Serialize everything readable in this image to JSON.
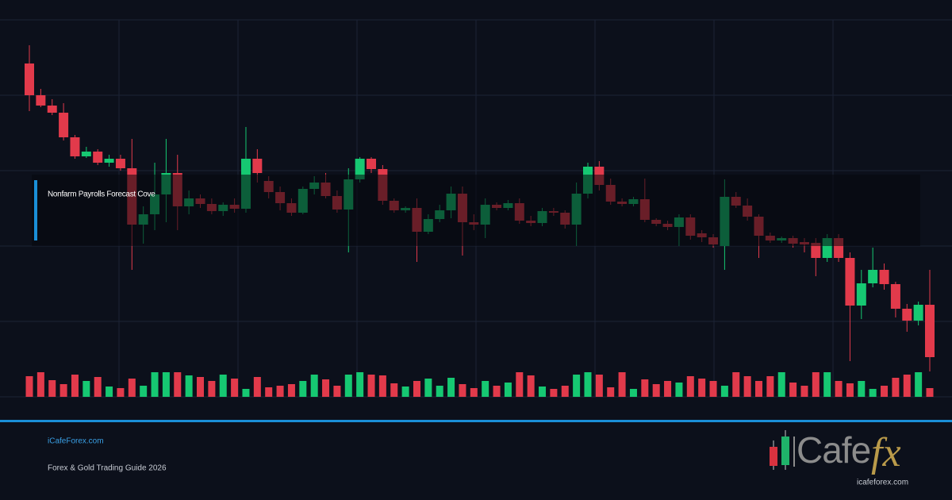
{
  "chart_data": {
    "type": "candlestick",
    "annotation": "Nonfarm Payrolls Forecast Cove",
    "up_color": "#16c872",
    "down_color": "#e23a4b",
    "ylim": [
      0,
      95
    ],
    "volume_lim": [
      0,
      100
    ],
    "open": [
      84,
      76,
      73.4,
      71.6,
      65.4,
      60.6,
      61.8,
      59,
      60,
      57.6,
      43.4,
      46,
      51,
      56.4,
      48,
      50,
      48.6,
      46.8,
      48.4,
      47.4,
      60,
      54.4,
      51.6,
      48.8,
      46.4,
      52.4,
      54,
      50.6,
      47.2,
      54.8,
      60,
      57.4,
      49.4,
      47,
      47.6,
      41.6,
      44.8,
      47,
      51.2,
      44,
      43.4,
      48.4,
      47.6,
      48.8,
      44.4,
      43.8,
      46.8,
      46.4,
      43.4,
      51.2,
      58,
      53.4,
      49.2,
      48.6,
      49.8,
      44.6,
      43.6,
      42.8,
      45.2,
      41.2,
      40.2,
      38,
      50.4,
      48.2,
      45.4,
      40.6,
      39.4,
      40,
      39,
      38.8,
      35,
      40,
      35,
      23,
      28.6,
      32,
      28.4,
      22.2,
      19.2,
      23.2
    ],
    "high": [
      88.6,
      77.6,
      75,
      74,
      66,
      63,
      62.4,
      61,
      61,
      65,
      48,
      59,
      65,
      61,
      52,
      51,
      50,
      49,
      50,
      68,
      62.4,
      55.6,
      53,
      50,
      53,
      55.6,
      56.4,
      52,
      57.6,
      60.4,
      60.4,
      58.4,
      50,
      48,
      50,
      46,
      48.4,
      53,
      53,
      46,
      50,
      49,
      49.6,
      50,
      45.6,
      47.6,
      47.6,
      47,
      54,
      59,
      59.4,
      55,
      50,
      50.4,
      55,
      45,
      44.4,
      46,
      46,
      42,
      41,
      54.8,
      51.6,
      50,
      46,
      41.4,
      40.4,
      40.6,
      40,
      40,
      41,
      41,
      36.4,
      32,
      37.6,
      33.6,
      29,
      23.4,
      24,
      32
    ],
    "low": [
      72,
      73,
      71,
      64.6,
      60,
      60.2,
      58.4,
      58,
      57,
      32,
      38.6,
      42,
      44,
      42,
      46,
      47.6,
      46,
      45.6,
      46.4,
      46.4,
      54,
      50,
      47,
      45.6,
      46,
      51,
      50,
      46.4,
      36.4,
      54,
      56.4,
      48.4,
      46.4,
      46.4,
      34,
      41,
      44,
      45,
      35.6,
      42,
      40,
      47,
      47,
      43.6,
      43,
      43,
      45.6,
      42.4,
      38,
      50,
      52,
      48.4,
      48,
      48,
      44,
      43,
      42,
      38,
      39.6,
      39,
      37.6,
      32,
      47.6,
      44.4,
      35,
      38.8,
      38.8,
      37.6,
      36.4,
      30.4,
      34,
      34,
      9,
      19.6,
      27.6,
      27,
      20,
      16.4,
      18,
      6.4
    ],
    "close": [
      76,
      73.4,
      71.6,
      65.4,
      60.6,
      61.8,
      59,
      60,
      57.6,
      43.4,
      46,
      51,
      56.4,
      48,
      50,
      48.6,
      46.8,
      48.4,
      47.4,
      60,
      56.4,
      51.6,
      48.8,
      46.4,
      52.4,
      54,
      50.6,
      47.2,
      54.8,
      60,
      57.4,
      49.4,
      47,
      47.6,
      41.6,
      44.8,
      47,
      51.2,
      44,
      43.4,
      48.4,
      47.6,
      48.8,
      44.4,
      43.8,
      46.8,
      46.4,
      43.4,
      51.2,
      58,
      53.4,
      49.2,
      48.6,
      49.8,
      44.6,
      43.6,
      42.8,
      45.2,
      40.6,
      40.2,
      38.4,
      50.4,
      48.2,
      45.4,
      40.6,
      39.4,
      40,
      38.6,
      38.4,
      35,
      40,
      35,
      23,
      28.6,
      32,
      28.4,
      22.2,
      19.2,
      23.2,
      10
    ],
    "volume": [
      26,
      31,
      21,
      16,
      28,
      20,
      25,
      13,
      11,
      23,
      14,
      31,
      31,
      31,
      27,
      25,
      20,
      28,
      23,
      10,
      25,
      12,
      14,
      16,
      20,
      28,
      22,
      14,
      28,
      31,
      28,
      27,
      17,
      13,
      20,
      23,
      14,
      24,
      16,
      11,
      20,
      14,
      18,
      31,
      27,
      13,
      10,
      14,
      28,
      31,
      28,
      12,
      31,
      10,
      22,
      16,
      20,
      18,
      26,
      23,
      20,
      14,
      31,
      26,
      20,
      26,
      31,
      18,
      14,
      31,
      31,
      20,
      17,
      20,
      10,
      14,
      24,
      28,
      31,
      11
    ]
  },
  "footer": {
    "site": "iCafeForex.com",
    "tagline": "Forex & Gold Trading Guide 2026"
  },
  "logo": {
    "word": "Cafe",
    "accent": "fx",
    "url": "icafeforex.com"
  }
}
